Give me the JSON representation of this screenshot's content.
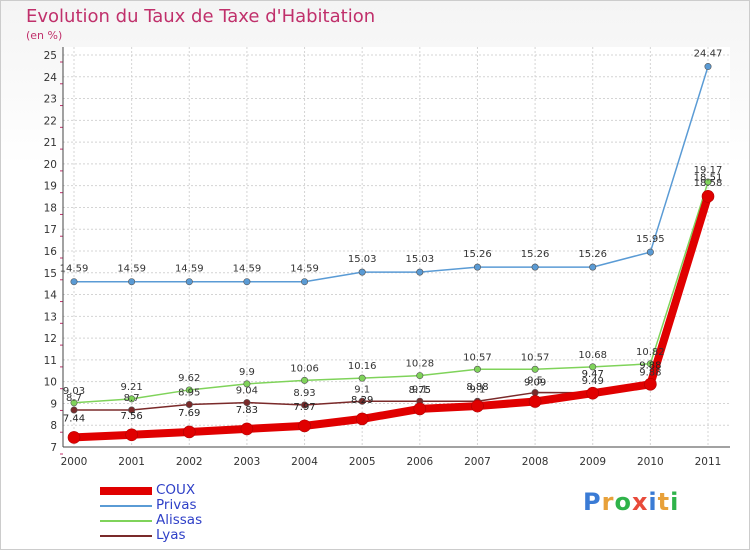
{
  "header": {
    "title": "Evolution du Taux de Taxe d'Habitation",
    "unit": "(en %)"
  },
  "logo": {
    "text": "Proxiti",
    "letter_colors": [
      "#3a7bd5",
      "#e8a13a",
      "#2fb34a",
      "#e84a3a",
      "#3a7bd5",
      "#e8a13a",
      "#2fb34a"
    ]
  },
  "chart_data": {
    "type": "line",
    "title": "Evolution du Taux de Taxe d'Habitation",
    "subtitle": "(en %)",
    "xlabel": "",
    "ylabel": "",
    "x": [
      "2000",
      "2001",
      "2002",
      "2003",
      "2004",
      "2005",
      "2006",
      "2007",
      "2008",
      "2009",
      "2010",
      "2011"
    ],
    "ylim": [
      7,
      25
    ],
    "yticks": [
      7,
      8,
      9,
      10,
      11,
      12,
      13,
      14,
      15,
      16,
      17,
      18,
      19,
      20,
      21,
      22,
      23,
      24,
      25
    ],
    "grid": true,
    "legend_position": "bottom-left",
    "series": [
      {
        "name": "COUX",
        "color": "#e00000",
        "values": [
          7.44,
          7.56,
          7.69,
          7.83,
          7.97,
          8.29,
          8.75,
          8.88,
          9.09,
          9.47,
          9.88,
          18.51
        ],
        "labels": [
          "7.44",
          "7.56",
          "7.69",
          "7.83",
          "7.97",
          "8.29",
          "8.75",
          "8.88",
          "9.09",
          "9.47",
          "9.88",
          "18.51"
        ]
      },
      {
        "name": "Privas",
        "color": "#5a9bd5",
        "values": [
          14.59,
          14.59,
          14.59,
          14.59,
          14.59,
          15.03,
          15.03,
          15.26,
          15.26,
          15.26,
          15.95,
          24.47
        ],
        "labels": [
          "14.59",
          "14.59",
          "14.59",
          "14.59",
          "14.59",
          "15.03",
          "15.03",
          "15.26",
          "15.26",
          "15.26",
          "15.95",
          "24.47"
        ]
      },
      {
        "name": "Alissas",
        "color": "#7fd35a",
        "values": [
          9.03,
          9.21,
          9.62,
          9.9,
          10.06,
          10.16,
          10.28,
          10.57,
          10.57,
          10.68,
          10.82,
          19.17
        ],
        "labels": [
          "9.03",
          "9.21",
          "9.62",
          "9.9",
          "10.06",
          "10.16",
          "10.28",
          "10.57",
          "10.57",
          "10.68",
          "10.82",
          "19.17"
        ]
      },
      {
        "name": "Lyas",
        "color": "#7a2a2a",
        "values": [
          8.7,
          8.7,
          8.95,
          9.04,
          8.93,
          9.1,
          9.1,
          9.1,
          9.5,
          9.49,
          9.88,
          18.58
        ],
        "labels": [
          "8.7",
          "8.7",
          "8.95",
          "9.04",
          "8.93",
          "9.1",
          "9.1",
          "9.1",
          "9.5",
          "9.49",
          "9.88",
          "18.58"
        ]
      }
    ]
  }
}
